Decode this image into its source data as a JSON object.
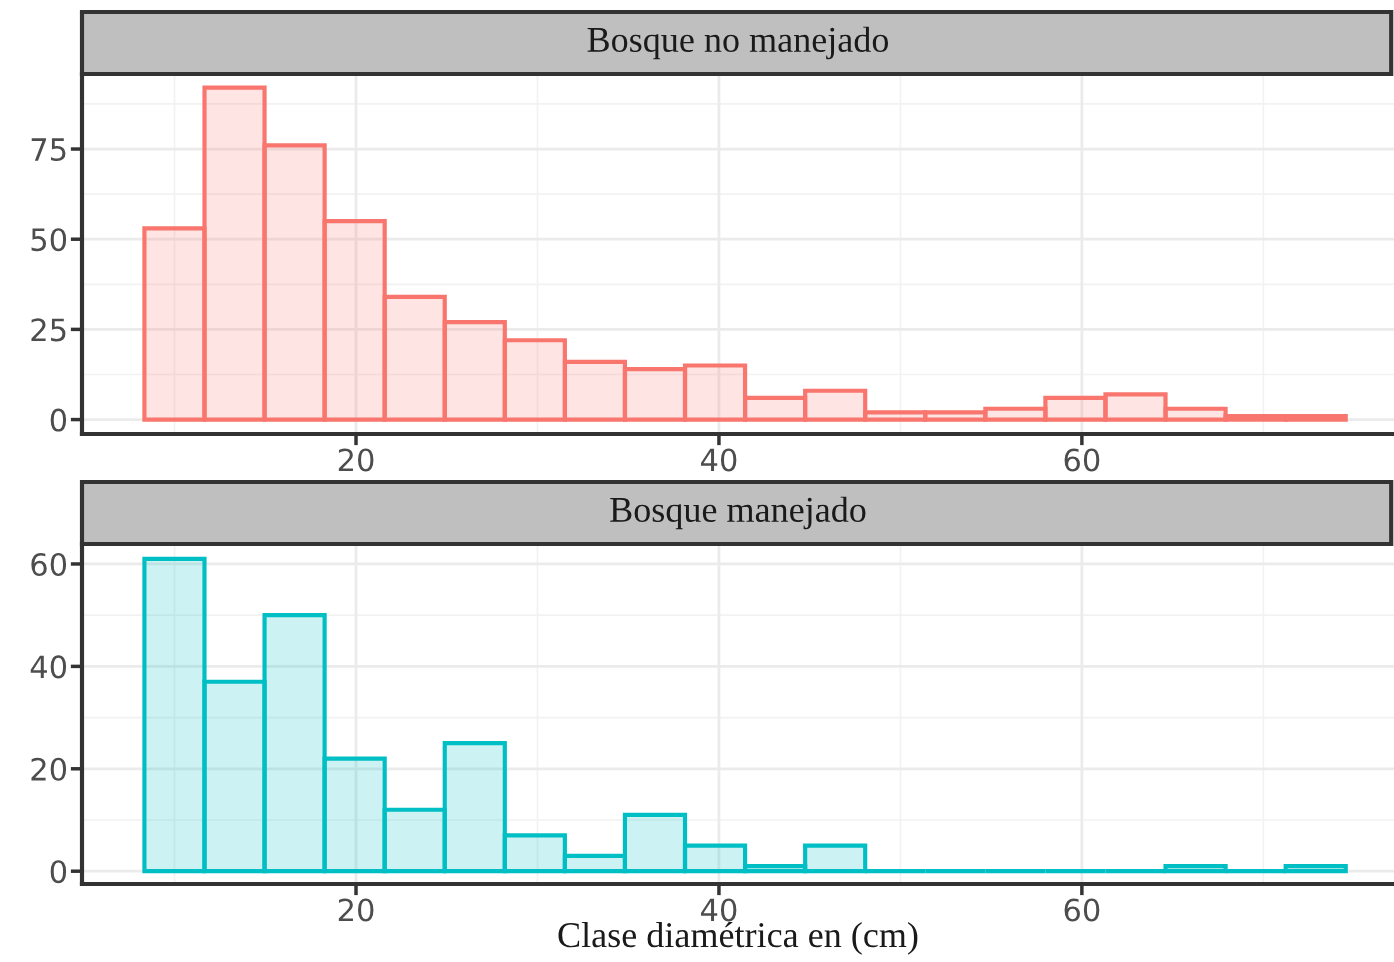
{
  "chart_data": [
    {
      "type": "histogram",
      "title": "Bosque no manejado",
      "color": "#f8766d",
      "bins": [
        8.34,
        11.65,
        14.96,
        18.27,
        21.58,
        24.89,
        28.2,
        31.51,
        34.82,
        38.13,
        41.44,
        44.75,
        48.06,
        51.37,
        54.68,
        57.99,
        61.3,
        64.61,
        67.92,
        71.23,
        74.54
      ],
      "values": [
        53,
        92,
        76,
        55,
        34,
        27,
        22,
        16,
        14,
        15,
        6,
        8,
        2,
        2,
        3,
        6,
        7,
        3,
        1,
        1
      ],
      "xlim": [
        4.9,
        77.2
      ],
      "ylim": [
        -4,
        95.8
      ],
      "xticks": [
        20,
        40,
        60
      ],
      "yticks": [
        0,
        25,
        50,
        75
      ],
      "grid": true
    },
    {
      "type": "histogram",
      "title": "Bosque manejado",
      "xlabel": "Clase diamétrica en (cm)",
      "color": "#00bfc4",
      "bins": [
        8.34,
        11.65,
        14.96,
        18.27,
        21.58,
        24.89,
        28.2,
        31.51,
        34.82,
        38.13,
        41.44,
        44.75,
        48.06,
        51.37,
        54.68,
        57.99,
        61.3,
        64.61,
        67.92,
        71.23,
        74.54
      ],
      "values": [
        61,
        37,
        50,
        22,
        12,
        25,
        7,
        3,
        11,
        5,
        1,
        5,
        0,
        0,
        0,
        0,
        0,
        1,
        0,
        1
      ],
      "xlim": [
        4.9,
        77.2
      ],
      "ylim": [
        -2.5,
        63.9
      ],
      "xticks": [
        20,
        40,
        60
      ],
      "yticks": [
        0,
        20,
        40,
        60
      ],
      "grid": true
    }
  ]
}
